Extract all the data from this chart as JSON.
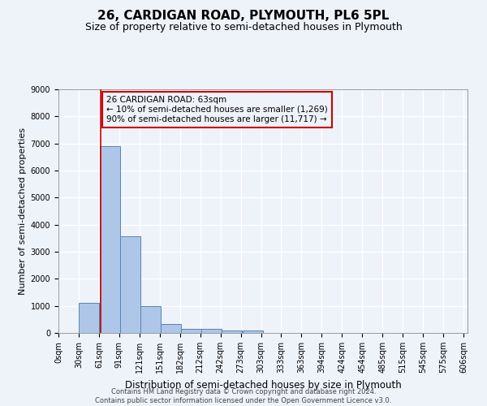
{
  "title": "26, CARDIGAN ROAD, PLYMOUTH, PL6 5PL",
  "subtitle": "Size of property relative to semi-detached houses in Plymouth",
  "xlabel": "Distribution of semi-detached houses by size in Plymouth",
  "ylabel": "Number of semi-detached properties",
  "footnote": "Contains HM Land Registry data © Crown copyright and database right 2024.\nContains public sector information licensed under the Open Government Licence v3.0.",
  "bar_left_edges": [
    0,
    30,
    61,
    91,
    121,
    151,
    182,
    212,
    242,
    273,
    303,
    333,
    363,
    394,
    424,
    454,
    485,
    515,
    545,
    575
  ],
  "bar_heights": [
    0,
    1120,
    6900,
    3560,
    1000,
    320,
    140,
    140,
    100,
    100,
    0,
    0,
    0,
    0,
    0,
    0,
    0,
    0,
    0,
    0
  ],
  "bin_width": 30,
  "bar_color": "#aec6e8",
  "bar_edge_color": "#5585b5",
  "property_size": 63,
  "property_label": "26 CARDIGAN ROAD: 63sqm",
  "smaller_pct": "10% of semi-detached houses are smaller (1,269)",
  "larger_pct": "90% of semi-detached houses are larger (11,717)",
  "vline_color": "#cc0000",
  "annotation_box_color": "#cc0000",
  "ylim": [
    0,
    9000
  ],
  "yticks": [
    0,
    1000,
    2000,
    3000,
    4000,
    5000,
    6000,
    7000,
    8000,
    9000
  ],
  "xtick_labels": [
    "0sqm",
    "30sqm",
    "61sqm",
    "91sqm",
    "121sqm",
    "151sqm",
    "182sqm",
    "212sqm",
    "242sqm",
    "273sqm",
    "303sqm",
    "333sqm",
    "363sqm",
    "394sqm",
    "424sqm",
    "454sqm",
    "485sqm",
    "515sqm",
    "545sqm",
    "575sqm",
    "606sqm"
  ],
  "background_color": "#eef2f9",
  "grid_color": "#ffffff",
  "title_fontsize": 11,
  "subtitle_fontsize": 9,
  "label_fontsize": 8,
  "tick_fontsize": 7,
  "annot_fontsize": 7.5,
  "footnote_fontsize": 6
}
